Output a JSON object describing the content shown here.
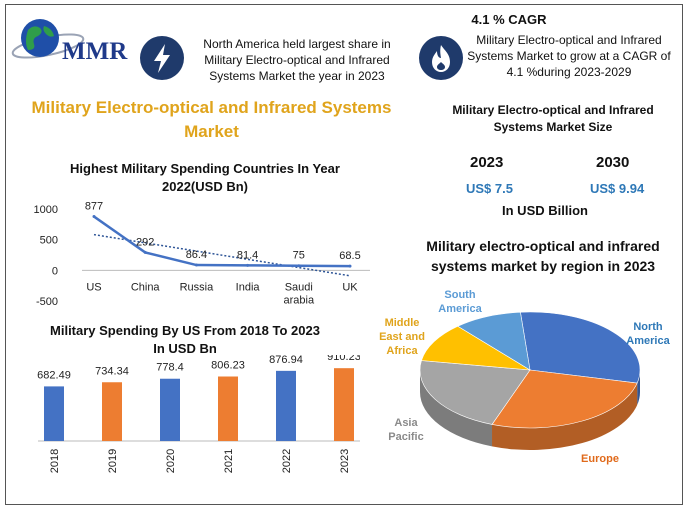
{
  "logo": {
    "text": "MMR",
    "icon": "globe-icon"
  },
  "info_left": {
    "icon": "lightning-bolt-icon",
    "text": "North America held largest share in Military Electro-optical and Infrared Systems Market the year in 2023"
  },
  "info_right": {
    "icon": "flame-icon",
    "headline": "4.1 % CAGR",
    "text": "Military Electro-optical and Infrared Systems Market to grow at a CAGR of 4.1 %during 2023-2029"
  },
  "main_title": "Military Electro-optical and Infrared Systems Market",
  "market_size": {
    "title": "Military Electro-optical and Infrared Systems Market Size",
    "years": [
      {
        "year": "2023",
        "value": "US$ 7.5"
      },
      {
        "year": "2030",
        "value": "US$ 9.94"
      }
    ],
    "unit": "In USD Billion"
  },
  "colors": {
    "title_gold": "#e0a41c",
    "blue": "#4472c4",
    "orange": "#ed7d31",
    "navy": "#1f3a6b",
    "value_blue": "#2e78b7"
  },
  "chart_data": [
    {
      "type": "line",
      "title": "Highest Military Spending Countries In Year 2022(USD Bn)",
      "categories": [
        "US",
        "China",
        "Russia",
        "India",
        "Saudi arabia",
        "UK"
      ],
      "values": [
        877,
        292,
        86.4,
        81.4,
        75,
        68.5
      ],
      "data_labels": [
        "877",
        "292",
        "86.4",
        "81.4",
        "75",
        "68.5"
      ],
      "yticks": [
        "1000",
        "500",
        "0",
        "-500"
      ],
      "ylim": [
        -500,
        1000
      ],
      "trendline": true,
      "grid": false
    },
    {
      "type": "bar",
      "title": "Military Spending By US From 2018 To 2023 In USD Bn",
      "categories": [
        "2018",
        "2019",
        "2020",
        "2021",
        "2022",
        "2023"
      ],
      "values": [
        682.49,
        734.34,
        778.4,
        806.23,
        876.94,
        910.23
      ],
      "data_labels": [
        "682.49",
        "734.34",
        "778.4",
        "806.23",
        "876.94",
        "910.23"
      ],
      "bar_colors": [
        "#4472c4",
        "#ed7d31",
        "#4472c4",
        "#ed7d31",
        "#4472c4",
        "#ed7d31"
      ]
    },
    {
      "type": "pie",
      "title": "Military electro-optical and infrared systems market  by region in 2023",
      "slices": [
        {
          "label": "North America",
          "value": 30,
          "color": "#4472c4",
          "label_color": "#2e78b7"
        },
        {
          "label": "Europe",
          "value": 27,
          "color": "#ed7d31",
          "label_color": "#e06a1b"
        },
        {
          "label": "Asia Pacific",
          "value": 22,
          "color": "#a5a5a5",
          "label_color": "#8a8a8a"
        },
        {
          "label": "Middle East and Africa",
          "value": 11,
          "color": "#ffc000",
          "label_color": "#e0a41c"
        },
        {
          "label": "South America",
          "value": 10,
          "color": "#5b9bd5",
          "label_color": "#5b9bd5"
        }
      ]
    }
  ]
}
